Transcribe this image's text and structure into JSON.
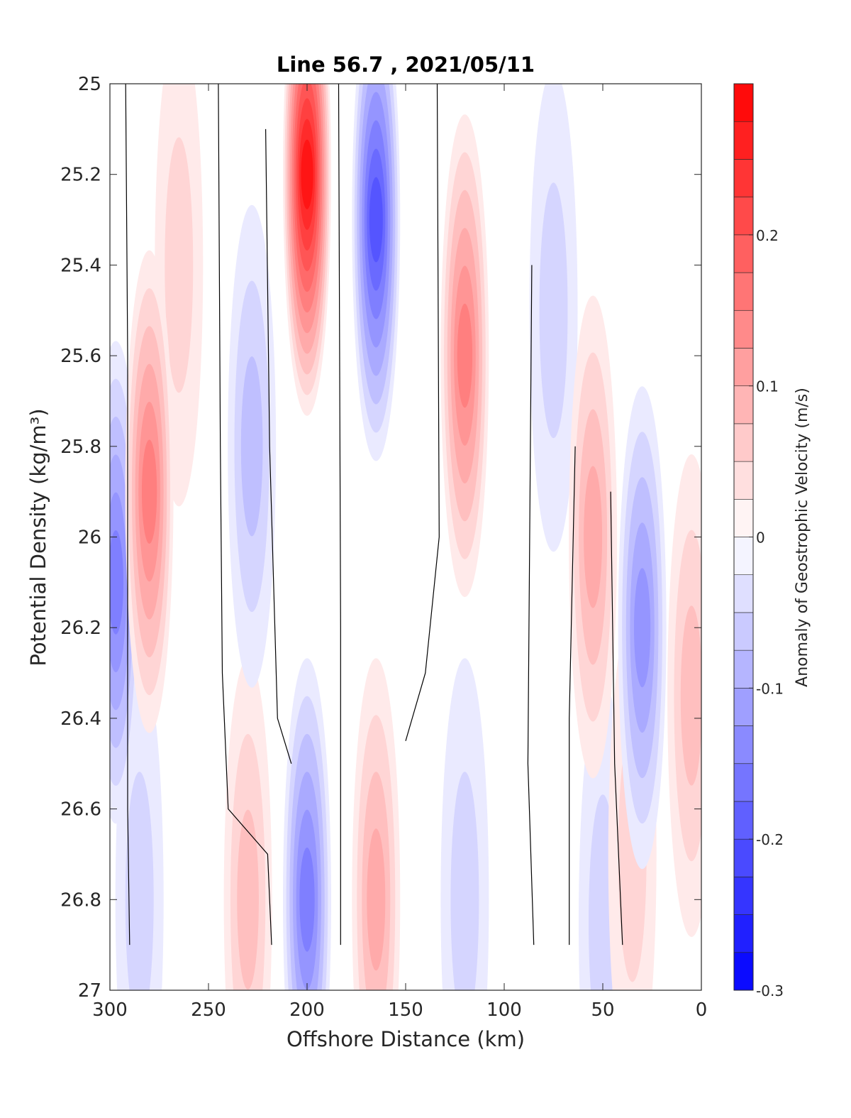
{
  "chart_data": {
    "type": "heatmap",
    "title": "Line 56.7 , 2021/05/11",
    "xlabel": "Offshore Distance (km)",
    "ylabel": "Potential Density (kg/m³)",
    "xlim": [
      300,
      0
    ],
    "ylim": [
      25,
      27
    ],
    "x_ticks": [
      300,
      250,
      200,
      150,
      100,
      50,
      0
    ],
    "y_ticks": [
      25,
      25.2,
      25.4,
      25.6,
      25.8,
      26,
      26.2,
      26.4,
      26.6,
      26.8,
      27
    ],
    "x_tick_labels": [
      "300",
      "250",
      "200",
      "150",
      "100",
      "50",
      "0"
    ],
    "y_tick_labels": [
      "25",
      "25.2",
      "25.4",
      "25.6",
      "25.8",
      "26",
      "26.2",
      "26.4",
      "26.6",
      "26.8",
      "27"
    ],
    "colorbar": {
      "label": "Anomaly of Geostrophic Velocity (m/s)",
      "range": [
        -0.3,
        0.3
      ],
      "levels": [
        -0.3,
        -0.275,
        -0.25,
        -0.225,
        -0.2,
        -0.175,
        -0.15,
        -0.125,
        -0.1,
        -0.075,
        -0.05,
        -0.025,
        0,
        0.025,
        0.05,
        0.075,
        0.1,
        0.125,
        0.15,
        0.175,
        0.2,
        0.225,
        0.25,
        0.275,
        0.3
      ],
      "ticks": [
        -0.3,
        -0.2,
        -0.1,
        0,
        0.1,
        0.2
      ],
      "tick_labels": [
        "-0.3",
        "-0.2",
        "-0.1",
        "0",
        "0.1",
        "0.2"
      ],
      "colormap": "blue-white-red",
      "negative_color": "#0000ff",
      "positive_color": "#ff0000"
    },
    "features": [
      {
        "x": 297,
        "y": 26.1,
        "value": -0.15
      },
      {
        "x": 280,
        "y": 25.9,
        "value": 0.15
      },
      {
        "x": 265,
        "y": 25.4,
        "value": 0.05
      },
      {
        "x": 228,
        "y": 25.8,
        "value": -0.075
      },
      {
        "x": 200,
        "y": 25.2,
        "value": 0.28
      },
      {
        "x": 165,
        "y": 25.3,
        "value": -0.2
      },
      {
        "x": 120,
        "y": 25.6,
        "value": 0.15
      },
      {
        "x": 75,
        "y": 25.5,
        "value": -0.05
      },
      {
        "x": 55,
        "y": 26.0,
        "value": 0.1
      },
      {
        "x": 30,
        "y": 26.2,
        "value": -0.12
      },
      {
        "x": 200,
        "y": 26.8,
        "value": -0.15
      },
      {
        "x": 165,
        "y": 26.8,
        "value": 0.1
      },
      {
        "x": 230,
        "y": 26.8,
        "value": 0.07
      },
      {
        "x": 120,
        "y": 26.8,
        "value": -0.05
      },
      {
        "x": 285,
        "y": 26.8,
        "value": -0.04
      },
      {
        "x": 50,
        "y": 26.85,
        "value": -0.04
      },
      {
        "x": 35,
        "y": 26.7,
        "value": 0.05
      },
      {
        "x": 5,
        "y": 26.35,
        "value": 0.07
      }
    ],
    "zero_contours": [
      [
        [
          292,
          25
        ],
        [
          291,
          25.6
        ],
        [
          291,
          26.6
        ],
        [
          290,
          26.9
        ]
      ],
      [
        [
          245,
          25
        ],
        [
          244,
          25.8
        ],
        [
          243,
          26.3
        ],
        [
          240,
          26.6
        ],
        [
          220,
          26.7
        ],
        [
          218,
          26.9
        ]
      ],
      [
        [
          221,
          25.1
        ],
        [
          219,
          25.8
        ],
        [
          215,
          26.4
        ],
        [
          208,
          26.5
        ]
      ],
      [
        [
          184,
          25
        ],
        [
          183,
          26.2
        ],
        [
          183,
          26.9
        ]
      ],
      [
        [
          134,
          25
        ],
        [
          133,
          26.0
        ],
        [
          140,
          26.3
        ],
        [
          150,
          26.45
        ]
      ],
      [
        [
          86,
          25.4
        ],
        [
          88,
          26.5
        ],
        [
          85,
          26.9
        ]
      ],
      [
        [
          64,
          25.8
        ],
        [
          67,
          26.4
        ],
        [
          67,
          26.9
        ]
      ],
      [
        [
          46,
          25.9
        ],
        [
          44,
          26.5
        ],
        [
          40,
          26.9
        ]
      ]
    ]
  }
}
